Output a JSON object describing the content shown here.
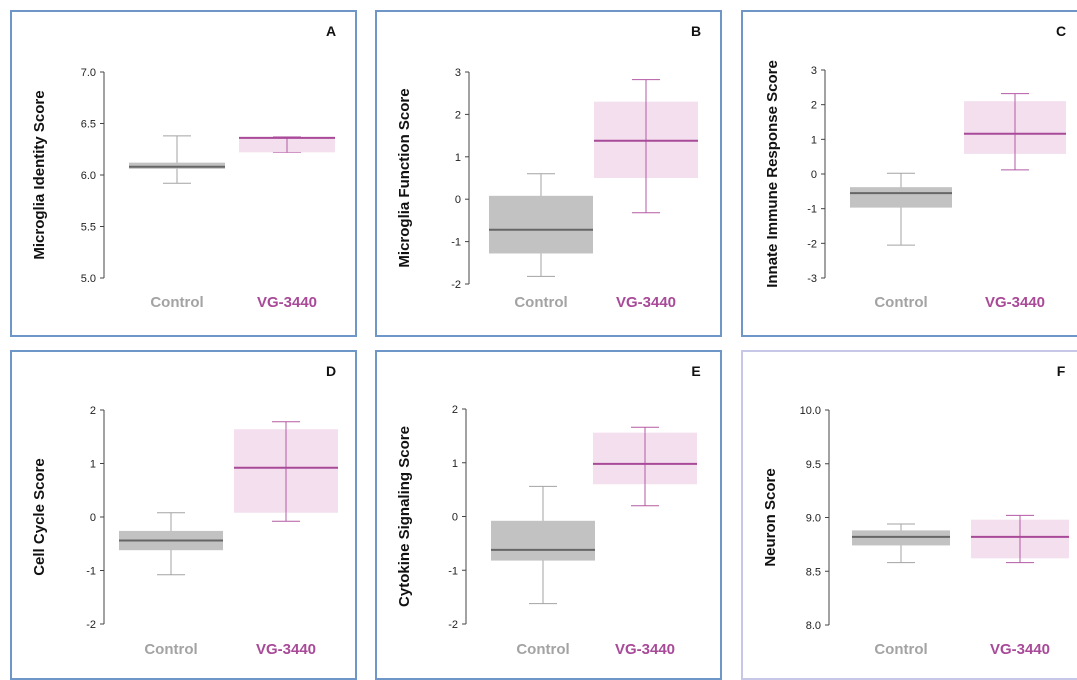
{
  "colors": {
    "control": "#a3a3a3",
    "control_fill": "#c2c2c2",
    "control_line": "#666666",
    "treatment": "#a84a98",
    "treatment_fill": "#f2dcec",
    "treatment_whisker": "#b35aa4",
    "panel_border": "#6f96c8",
    "panel_border_light": "#c7c8e8"
  },
  "chart_data": [
    {
      "type": "box",
      "letter": "A",
      "ylabel": "Microglia Identity Score",
      "ylim": [
        5.0,
        7.0
      ],
      "yticks": [
        "5.0",
        "5.5",
        "6.0",
        "6.5",
        "7.0"
      ],
      "categories": [
        "Control",
        "VG-3440"
      ],
      "boxes": [
        {
          "name": "Control",
          "min": 5.92,
          "q1": 6.06,
          "median": 6.08,
          "q3": 6.12,
          "max": 6.38
        },
        {
          "name": "VG-3440",
          "min": 6.22,
          "q1": 6.22,
          "median": 6.36,
          "q3": 6.37,
          "max": 6.37
        }
      ]
    },
    {
      "type": "box",
      "letter": "B",
      "ylabel": "Microglia Function Score",
      "ylim": [
        -2,
        3
      ],
      "yticks": [
        "-2",
        "-1",
        "0",
        "1",
        "2",
        "3"
      ],
      "categories": [
        "Control",
        "VG-3440"
      ],
      "boxes": [
        {
          "name": "Control",
          "min": -1.82,
          "q1": -1.28,
          "median": -0.72,
          "q3": 0.08,
          "max": 0.6
        },
        {
          "name": "VG-3440",
          "min": -0.32,
          "q1": 0.5,
          "median": 1.38,
          "q3": 2.3,
          "max": 2.82
        }
      ]
    },
    {
      "type": "box",
      "letter": "C",
      "ylabel": "Innate Immune Response Score",
      "ylim": [
        -3,
        3
      ],
      "yticks": [
        "-3",
        "-2",
        "-1",
        "0",
        "1",
        "2",
        "3"
      ],
      "categories": [
        "Control",
        "VG-3440"
      ],
      "boxes": [
        {
          "name": "Control",
          "min": -2.05,
          "q1": -0.97,
          "median": -0.55,
          "q3": -0.38,
          "max": 0.02
        },
        {
          "name": "VG-3440",
          "min": 0.12,
          "q1": 0.58,
          "median": 1.16,
          "q3": 2.1,
          "max": 2.32
        }
      ]
    },
    {
      "type": "box",
      "letter": "D",
      "ylabel": "Cell Cycle Score",
      "ylim": [
        -2,
        2
      ],
      "yticks": [
        "-2",
        "-1",
        "0",
        "1",
        "2"
      ],
      "categories": [
        "Control",
        "VG-3440"
      ],
      "boxes": [
        {
          "name": "Control",
          "min": -1.08,
          "q1": -0.62,
          "median": -0.44,
          "q3": -0.26,
          "max": 0.08
        },
        {
          "name": "VG-3440",
          "min": -0.08,
          "q1": 0.08,
          "median": 0.92,
          "q3": 1.64,
          "max": 1.78
        }
      ]
    },
    {
      "type": "box",
      "letter": "E",
      "ylabel": "Cytokine Signaling Score",
      "ylim": [
        -2,
        2
      ],
      "yticks": [
        "-2",
        "-1",
        "0",
        "1",
        "2"
      ],
      "categories": [
        "Control",
        "VG-3440"
      ],
      "boxes": [
        {
          "name": "Control",
          "min": -1.62,
          "q1": -0.82,
          "median": -0.62,
          "q3": -0.08,
          "max": 0.56
        },
        {
          "name": "VG-3440",
          "min": 0.2,
          "q1": 0.6,
          "median": 0.98,
          "q3": 1.56,
          "max": 1.66
        }
      ]
    },
    {
      "type": "box",
      "letter": "F",
      "ylabel": "Neuron Score",
      "ylim": [
        8.0,
        10.0
      ],
      "yticks": [
        "8.0",
        "8.5",
        "9.0",
        "9.5",
        "10.0"
      ],
      "categories": [
        "Control",
        "VG-3440"
      ],
      "boxes": [
        {
          "name": "Control",
          "min": 8.58,
          "q1": 8.74,
          "median": 8.82,
          "q3": 8.88,
          "max": 8.94
        },
        {
          "name": "VG-3440",
          "min": 8.58,
          "q1": 8.62,
          "median": 8.82,
          "q3": 8.98,
          "max": 9.02
        }
      ]
    }
  ]
}
